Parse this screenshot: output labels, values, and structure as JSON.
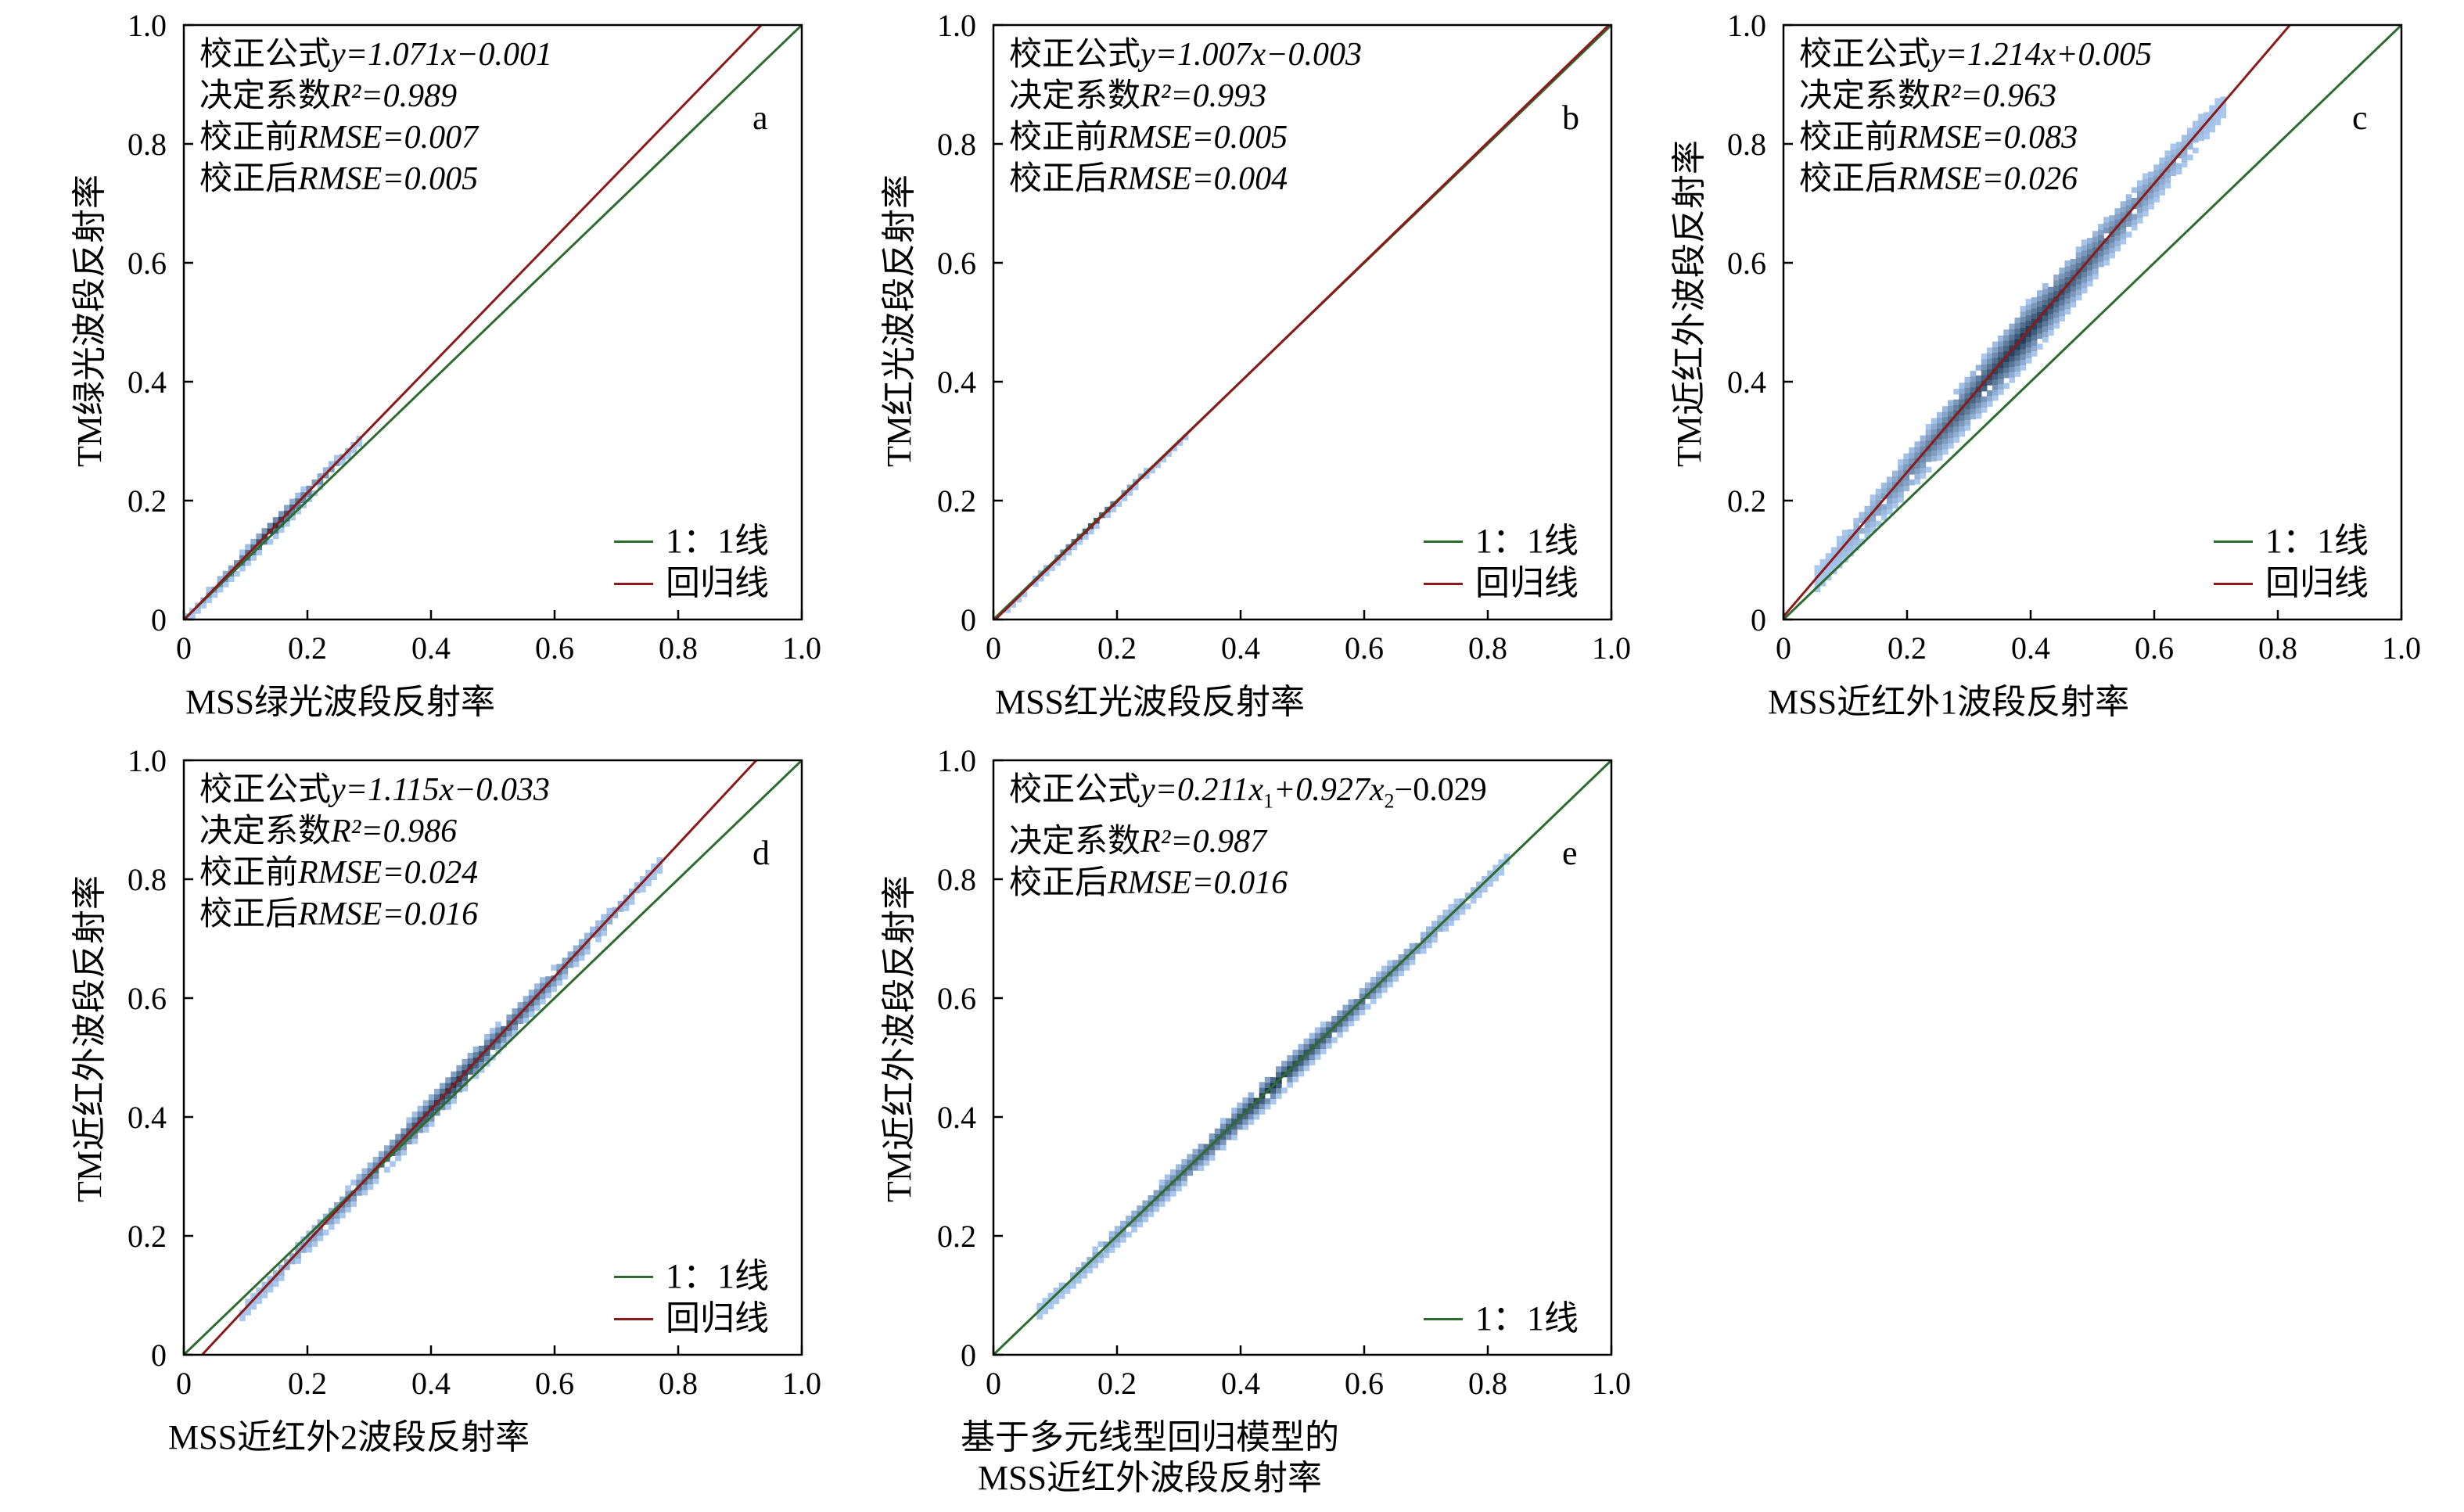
{
  "colors": {
    "identity_line": "#2e6b2e",
    "regression_line": "#8b1a1a",
    "density_light": "#aac8ee",
    "density_dark": "#1a3550"
  },
  "chart_data": [
    {
      "type": "scatter",
      "panel_letter": "a",
      "xlabel": "MSS绿光波段反射率",
      "ylabel": "TM绿光波段反射率",
      "xlim": [
        0,
        1.0
      ],
      "ylim": [
        0,
        1.0
      ],
      "ticks": [
        "0",
        "0.2",
        "0.4",
        "0.6",
        "0.8",
        "1.0"
      ],
      "annotations": {
        "formula_prefix": "校正公式",
        "formula": "y=1.071x−0.001",
        "r2_prefix": "决定系数",
        "r2": "R²=0.989",
        "rmse_before_prefix": "校正前",
        "rmse_before": "RMSE=0.007",
        "rmse_after_prefix": "校正后",
        "rmse_after": "RMSE=0.005"
      },
      "legend": [
        "1：1线",
        "回归线"
      ],
      "regression": {
        "slope": 1.071,
        "intercept": -0.001
      },
      "density": {
        "x_range": [
          0.0,
          0.28
        ],
        "slope": 1.071,
        "intercept": -0.001,
        "spread": 0.012
      }
    },
    {
      "type": "scatter",
      "panel_letter": "b",
      "xlabel": "MSS红光波段反射率",
      "ylabel": "TM红光波段反射率",
      "xlim": [
        0,
        1.0
      ],
      "ylim": [
        0,
        1.0
      ],
      "ticks": [
        "0",
        "0.2",
        "0.4",
        "0.6",
        "0.8",
        "1.0"
      ],
      "annotations": {
        "formula_prefix": "校正公式",
        "formula": "y=1.007x−0.003",
        "r2_prefix": "决定系数",
        "r2": "R²=0.993",
        "rmse_before_prefix": "校正前",
        "rmse_before": "RMSE=0.005",
        "rmse_after_prefix": "校正后",
        "rmse_after": "RMSE=0.004"
      },
      "legend": [
        "1：1线",
        "回归线"
      ],
      "regression": {
        "slope": 1.007,
        "intercept": -0.003
      },
      "density": {
        "x_range": [
          0.0,
          0.31
        ],
        "slope": 1.007,
        "intercept": -0.003,
        "spread": 0.005
      }
    },
    {
      "type": "scatter",
      "panel_letter": "c",
      "xlabel": "MSS近红外1波段反射率",
      "ylabel": "TM近红外波段反射率",
      "xlim": [
        0,
        1.0
      ],
      "ylim": [
        0,
        1.0
      ],
      "ticks": [
        "0",
        "0.2",
        "0.4",
        "0.6",
        "0.8",
        "1.0"
      ],
      "annotations": {
        "formula_prefix": "校正公式",
        "formula": "y=1.214x+0.005",
        "r2_prefix": "决定系数",
        "r2": "R²=0.963",
        "rmse_before_prefix": "校正前",
        "rmse_before": "RMSE=0.083",
        "rmse_after_prefix": "校正后",
        "rmse_after": "RMSE=0.026"
      },
      "legend": [
        "1：1线",
        "回归线"
      ],
      "regression": {
        "slope": 1.214,
        "intercept": 0.005
      },
      "density": {
        "x_range": [
          0.05,
          0.71
        ],
        "slope": 1.214,
        "intercept": 0.005,
        "spread": 0.035
      }
    },
    {
      "type": "scatter",
      "panel_letter": "d",
      "xlabel": "MSS近红外2波段反射率",
      "ylabel": "TM近红外波段反射率",
      "xlim": [
        0,
        1.0
      ],
      "ylim": [
        0,
        1.0
      ],
      "ticks": [
        "0",
        "0.2",
        "0.4",
        "0.6",
        "0.8",
        "1.0"
      ],
      "annotations": {
        "formula_prefix": "校正公式",
        "formula": "y=1.115x−0.033",
        "r2_prefix": "决定系数",
        "r2": "R²=0.986",
        "rmse_before_prefix": "校正前",
        "rmse_before": "RMSE=0.024",
        "rmse_after_prefix": "校正后",
        "rmse_after": "RMSE=0.016"
      },
      "legend": [
        "1：1线",
        "回归线"
      ],
      "regression": {
        "slope": 1.115,
        "intercept": -0.033
      },
      "density": {
        "x_range": [
          0.09,
          0.77
        ],
        "slope": 1.115,
        "intercept": -0.033,
        "spread": 0.018
      }
    },
    {
      "type": "scatter",
      "panel_letter": "e",
      "xlabel": "基于多元线型回归模型的",
      "xlabel_line2": "MSS近红外波段反射率",
      "ylabel": "TM近红外波段反射率",
      "xlim": [
        0,
        1.0
      ],
      "ylim": [
        0,
        1.0
      ],
      "ticks": [
        "0",
        "0.2",
        "0.4",
        "0.6",
        "0.8",
        "1.0"
      ],
      "annotations": {
        "formula_prefix": "校正公式",
        "formula_y": "y=0.211x",
        "formula_sub1": "1",
        "formula_mid": "+0.927x",
        "formula_sub2": "2",
        "formula_end": "−0.029",
        "r2_prefix": "决定系数",
        "r2": "R²=0.987",
        "rmse_after_prefix": "校正后",
        "rmse_after": "RMSE=0.016"
      },
      "legend": [
        "1：1线"
      ],
      "density": {
        "x_range": [
          0.07,
          0.83
        ],
        "slope": 1.0,
        "intercept": 0.0,
        "spread": 0.018
      }
    }
  ]
}
